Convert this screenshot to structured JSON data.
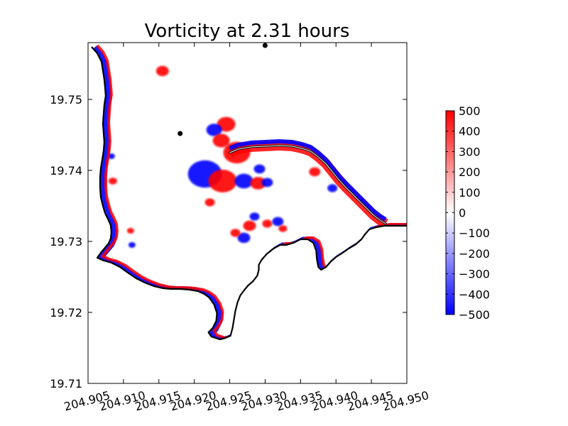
{
  "chart_data": {
    "type": "heatmap",
    "title": "Vorticity at 2.31 hours",
    "xlabel": "",
    "ylabel": "",
    "xlim": [
      204.905,
      204.95
    ],
    "ylim": [
      19.71,
      19.758
    ],
    "x_ticks": [
      "204.905",
      "204.910",
      "204.915",
      "204.920",
      "204.925",
      "204.930",
      "204.935",
      "204.940",
      "204.945",
      "204.950"
    ],
    "x_tick_values": [
      204.905,
      204.91,
      204.915,
      204.92,
      204.925,
      204.93,
      204.935,
      204.94,
      204.945,
      204.95
    ],
    "y_ticks": [
      "19.71",
      "19.72",
      "19.73",
      "19.74",
      "19.75"
    ],
    "y_tick_values": [
      19.71,
      19.72,
      19.73,
      19.74,
      19.75
    ],
    "colorbar": {
      "min": -500,
      "max": 500,
      "ticks": [
        "500",
        "400",
        "300",
        "200",
        "100",
        "0",
        "−100",
        "−200",
        "−300",
        "−400",
        "−500"
      ],
      "tick_values": [
        500,
        400,
        300,
        200,
        100,
        0,
        -100,
        -200,
        -300,
        -400,
        -500
      ],
      "colormap": "bwr",
      "colors": {
        "low": "#0000ff",
        "mid": "#ffffff",
        "high": "#ff0000"
      }
    },
    "markers": [
      {
        "x": 204.918,
        "y": 19.7452
      },
      {
        "x": 204.93,
        "y": 19.7576
      }
    ],
    "coastline": [
      [
        204.9055,
        19.7574
      ],
      [
        204.9063,
        19.7565
      ],
      [
        204.9069,
        19.7553
      ],
      [
        204.9071,
        19.754
      ],
      [
        204.9073,
        19.7528
      ],
      [
        204.9074,
        19.7518
      ],
      [
        204.9075,
        19.7505
      ],
      [
        204.9073,
        19.7492
      ],
      [
        204.9072,
        19.748
      ],
      [
        204.9071,
        19.7466
      ],
      [
        204.9072,
        19.7452
      ],
      [
        204.9073,
        19.744
      ],
      [
        204.9072,
        19.7428
      ],
      [
        204.907,
        19.7415
      ],
      [
        204.9068,
        19.7403
      ],
      [
        204.9067,
        19.739
      ],
      [
        204.9067,
        19.7376
      ],
      [
        204.9068,
        19.7362
      ],
      [
        204.9071,
        19.735
      ],
      [
        204.9074,
        19.734
      ],
      [
        204.9078,
        19.7332
      ],
      [
        204.9082,
        19.7323
      ],
      [
        204.9083,
        19.7313
      ],
      [
        204.9082,
        19.7304
      ],
      [
        204.9079,
        19.7297
      ],
      [
        204.9074,
        19.7291
      ],
      [
        204.9068,
        19.7284
      ],
      [
        204.9063,
        19.7277
      ],
      [
        204.9072,
        19.7273
      ],
      [
        204.9083,
        19.727
      ],
      [
        204.9095,
        19.7264
      ],
      [
        204.9106,
        19.7256
      ],
      [
        204.9118,
        19.7248
      ],
      [
        204.913,
        19.7242
      ],
      [
        204.9143,
        19.7237
      ],
      [
        204.9156,
        19.7234
      ],
      [
        204.9167,
        19.7233
      ],
      [
        204.918,
        19.7233
      ],
      [
        204.9193,
        19.7232
      ],
      [
        204.9205,
        19.723
      ],
      [
        204.9214,
        19.7226
      ],
      [
        204.9221,
        19.7221
      ],
      [
        204.9228,
        19.7211
      ],
      [
        204.9232,
        19.7199
      ],
      [
        204.9231,
        19.7188
      ],
      [
        204.9226,
        19.7178
      ],
      [
        204.922,
        19.7172
      ],
      [
        204.9224,
        19.7166
      ],
      [
        204.9236,
        19.7162
      ],
      [
        204.9244,
        19.7164
      ],
      [
        204.9251,
        19.7167
      ],
      [
        204.9254,
        19.7178
      ],
      [
        204.9256,
        19.719
      ],
      [
        204.9258,
        19.7202
      ],
      [
        204.9261,
        19.7214
      ],
      [
        204.9265,
        19.7224
      ],
      [
        204.9271,
        19.7232
      ],
      [
        204.9276,
        19.7238
      ],
      [
        204.9283,
        19.7244
      ],
      [
        204.9289,
        19.7252
      ],
      [
        204.9291,
        19.726
      ],
      [
        204.9291,
        19.7267
      ],
      [
        204.9295,
        19.7274
      ],
      [
        204.9302,
        19.7282
      ],
      [
        204.9312,
        19.729
      ],
      [
        204.9321,
        19.7295
      ],
      [
        204.933,
        19.7295
      ],
      [
        204.934,
        19.7298
      ],
      [
        204.935,
        19.7303
      ],
      [
        204.936,
        19.7303
      ],
      [
        204.9368,
        19.7298
      ],
      [
        204.9372,
        19.7287
      ],
      [
        204.9373,
        19.7275
      ],
      [
        204.9375,
        19.7264
      ],
      [
        204.9379,
        19.726
      ],
      [
        204.9386,
        19.7264
      ],
      [
        204.9393,
        19.7272
      ],
      [
        204.94,
        19.7278
      ],
      [
        204.9408,
        19.7283
      ],
      [
        204.9418,
        19.729
      ],
      [
        204.9428,
        19.7296
      ],
      [
        204.9436,
        19.7303
      ],
      [
        204.9441,
        19.731
      ],
      [
        204.9447,
        19.7317
      ],
      [
        204.9457,
        19.732
      ],
      [
        204.9468,
        19.7322
      ],
      [
        204.95,
        19.7322
      ]
    ],
    "breakwater": [
      [
        204.925,
        19.7425
      ],
      [
        204.9262,
        19.743
      ],
      [
        204.928,
        19.7433
      ],
      [
        204.93,
        19.7434
      ],
      [
        204.932,
        19.7435
      ],
      [
        204.9338,
        19.7434
      ],
      [
        204.9352,
        19.7431
      ],
      [
        204.9364,
        19.7427
      ],
      [
        204.9375,
        19.7419
      ],
      [
        204.9386,
        19.7409
      ],
      [
        204.9395,
        19.7398
      ],
      [
        204.9403,
        19.7388
      ],
      [
        204.9413,
        19.7377
      ],
      [
        204.9423,
        19.7367
      ],
      [
        204.9433,
        19.7357
      ],
      [
        204.9443,
        19.7347
      ],
      [
        204.9453,
        19.7337
      ],
      [
        204.9462,
        19.733
      ],
      [
        204.947,
        19.7325
      ]
    ],
    "eddies": [
      {
        "x": 204.9245,
        "y": 19.7465,
        "sign": "pos",
        "r": 0.0013
      },
      {
        "x": 204.9228,
        "y": 19.7457,
        "sign": "neg",
        "r": 0.0011
      },
      {
        "x": 204.9238,
        "y": 19.7442,
        "sign": "pos",
        "r": 0.0012
      },
      {
        "x": 204.926,
        "y": 19.7425,
        "sign": "pos",
        "r": 0.0019
      },
      {
        "x": 204.9215,
        "y": 19.7395,
        "sign": "neg",
        "r": 0.0024
      },
      {
        "x": 204.924,
        "y": 19.7385,
        "sign": "pos",
        "r": 0.002
      },
      {
        "x": 204.927,
        "y": 19.7385,
        "sign": "neg",
        "r": 0.0013
      },
      {
        "x": 204.929,
        "y": 19.7382,
        "sign": "pos",
        "r": 0.0011
      },
      {
        "x": 204.9303,
        "y": 19.7383,
        "sign": "neg",
        "r": 0.0008
      },
      {
        "x": 204.9292,
        "y": 19.7402,
        "sign": "neg",
        "r": 0.0008
      },
      {
        "x": 204.9222,
        "y": 19.7355,
        "sign": "pos",
        "r": 0.0007
      },
      {
        "x": 204.9278,
        "y": 19.7322,
        "sign": "pos",
        "r": 0.0009
      },
      {
        "x": 204.927,
        "y": 19.7305,
        "sign": "neg",
        "r": 0.0009
      },
      {
        "x": 204.9258,
        "y": 19.7312,
        "sign": "pos",
        "r": 0.0007
      },
      {
        "x": 204.9285,
        "y": 19.7335,
        "sign": "neg",
        "r": 0.0007
      },
      {
        "x": 204.9303,
        "y": 19.7325,
        "sign": "pos",
        "r": 0.0007
      },
      {
        "x": 204.9318,
        "y": 19.7328,
        "sign": "neg",
        "r": 0.0008
      },
      {
        "x": 204.9325,
        "y": 19.7318,
        "sign": "pos",
        "r": 0.0006
      },
      {
        "x": 204.911,
        "y": 19.7315,
        "sign": "pos",
        "r": 0.0005
      },
      {
        "x": 204.9112,
        "y": 19.7295,
        "sign": "neg",
        "r": 0.0005
      },
      {
        "x": 204.9085,
        "y": 19.7385,
        "sign": "pos",
        "r": 0.0006
      },
      {
        "x": 204.9083,
        "y": 19.742,
        "sign": "neg",
        "r": 0.0005
      },
      {
        "x": 204.9155,
        "y": 19.754,
        "sign": "pos",
        "r": 0.0009
      },
      {
        "x": 204.937,
        "y": 19.7398,
        "sign": "pos",
        "r": 0.0008
      },
      {
        "x": 204.9395,
        "y": 19.7375,
        "sign": "neg",
        "r": 0.0007
      }
    ]
  }
}
